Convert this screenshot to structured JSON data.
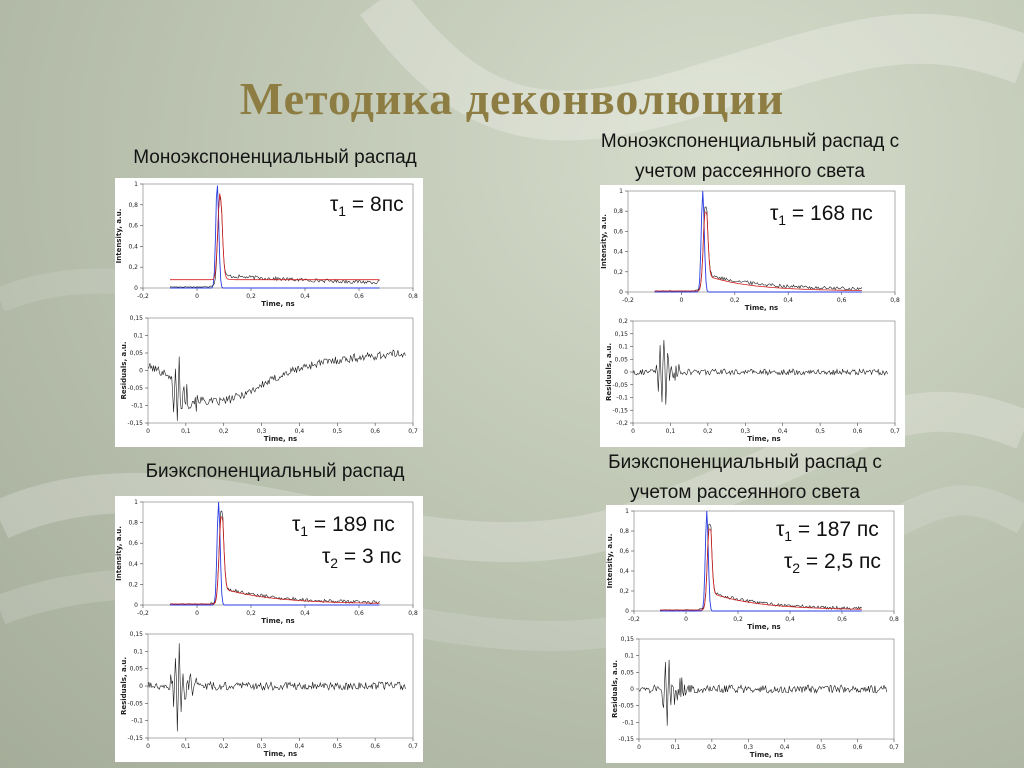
{
  "slide": {
    "title": "Методика деконволюции",
    "accent_color": "#8d7d42"
  },
  "panels": [
    {
      "caption_lines": [
        "Моноэкспоненциальный распад"
      ],
      "tau_lines": [
        {
          "sym": "τ",
          "sub": "1",
          "val": " = 8пс"
        }
      ]
    },
    {
      "caption_lines": [
        "Моноэкспоненциальный распад с",
        "учетом рассеянного света"
      ],
      "tau_lines": [
        {
          "sym": "τ",
          "sub": "1",
          "val": " = 168 пс"
        }
      ]
    },
    {
      "caption_lines": [
        "Биэкспоненциальный распад"
      ],
      "tau_lines": [
        {
          "sym": "τ",
          "sub": "1",
          "val": " = 189 пс"
        },
        {
          "sym": "τ",
          "sub": "2",
          "val": " = 3 пс"
        }
      ]
    },
    {
      "caption_lines": [
        "Биэкспоненциальный распад с",
        "учетом рассеянного света"
      ],
      "tau_lines": [
        {
          "sym": "τ",
          "sub": "1",
          "val": " = 187 пс"
        },
        {
          "sym": "τ",
          "sub": "2",
          "val": " = 2,5 пс"
        }
      ]
    }
  ],
  "chart_data": [
    {
      "type": "line",
      "panel": 0,
      "plot": "decay",
      "xlabel": "Time, ns",
      "ylabel": "Intensity, a.u.",
      "xlim": [
        -0.2,
        0.8
      ],
      "ylim": [
        0,
        1
      ],
      "xticks": [
        "-0,2",
        "0",
        "0,2",
        "0,4",
        "0,6",
        "0,8"
      ],
      "yticks": [
        "0",
        "0,2",
        "0,4",
        "0,6",
        "0,8",
        "1"
      ],
      "series_colors": {
        "irf": "#2a3ee0",
        "data": "#1a1a1a",
        "fit": "#d42020"
      },
      "model": {
        "irf_peak_x": 0.075,
        "irf_width": 0.008,
        "data_peak": 0.88,
        "tail_level": 0.1,
        "tail_decay": 0.55,
        "fit_baseline": 0.07,
        "fit_tail_level": 0.12,
        "fit_tau": 0.008,
        "x_start": -0.1,
        "x_end": 0.68
      },
      "grid": false
    },
    {
      "type": "line",
      "panel": 0,
      "plot": "residuals",
      "xlabel": "Time, ns",
      "ylabel": "Residuals, a.u.",
      "xlim": [
        0,
        0.7
      ],
      "ylim": [
        -0.15,
        0.15
      ],
      "xticks": [
        "0",
        "0,1",
        "0,2",
        "0,3",
        "0,4",
        "0,5",
        "0,6",
        "0,7"
      ],
      "yticks": [
        "-0,15",
        "-0,1",
        "-0,05",
        "0",
        "0,05",
        "0,1",
        "0,15"
      ],
      "model": {
        "spike_x": 0.08,
        "spike_amp": 0.1,
        "dip_center": 0.18,
        "dip_depth": -0.09,
        "dip_width": 0.25,
        "end_level": 0.05,
        "noise": 0.012,
        "x_end": 0.68
      },
      "grid": false
    },
    {
      "type": "line",
      "panel": 1,
      "plot": "decay",
      "xlabel": "Time, ns",
      "ylabel": "Intensity, a.u.",
      "xlim": [
        -0.2,
        0.8
      ],
      "ylim": [
        0,
        1
      ],
      "xticks": [
        "-0,2",
        "0",
        "0,2",
        "0,4",
        "0,6",
        "0,8"
      ],
      "yticks": [
        "0",
        "0,2",
        "0,4",
        "0,6",
        "0,8",
        "1"
      ],
      "series_colors": {
        "irf": "#2a3ee0",
        "data": "#1a1a1a",
        "fit": "#d42020"
      },
      "model": {
        "irf_peak_x": 0.08,
        "irf_width": 0.008,
        "data_peak": 0.85,
        "tail_level": 0.15,
        "tail_decay": 0.22,
        "fit_baseline": 0.0,
        "fit_tail_level": 0.15,
        "fit_tau": 0.168,
        "x_start": -0.1,
        "x_end": 0.68
      },
      "grid": false
    },
    {
      "type": "line",
      "panel": 1,
      "plot": "residuals",
      "xlabel": "Time, ns",
      "ylabel": "Residuals, a.u.",
      "xlim": [
        0,
        0.7
      ],
      "ylim": [
        -0.2,
        0.2
      ],
      "xticks": [
        "0",
        "0,1",
        "0,2",
        "0,3",
        "0,4",
        "0,5",
        "0,6",
        "0,7"
      ],
      "yticks": [
        "-0,2",
        "-0,15",
        "-0,1",
        "-0,05",
        "0",
        "0,05",
        "0,1",
        "0,15",
        "0,2"
      ],
      "model": {
        "spike_x": 0.08,
        "spike_amp": 0.16,
        "dip_center": 0.2,
        "dip_depth": 0.0,
        "dip_width": 0.2,
        "end_level": 0.0,
        "noise": 0.012,
        "x_end": 0.68
      },
      "grid": false
    },
    {
      "type": "line",
      "panel": 2,
      "plot": "decay",
      "xlabel": "Time, ns",
      "ylabel": "Intensity, a.u.",
      "xlim": [
        -0.2,
        0.8
      ],
      "ylim": [
        0,
        1
      ],
      "xticks": [
        "-0,2",
        "0",
        "0,2",
        "0,4",
        "0,6",
        "0,8"
      ],
      "yticks": [
        "0",
        "0,2",
        "0,4",
        "0,6",
        "0,8",
        "1"
      ],
      "series_colors": {
        "irf": "#2a3ee0",
        "data": "#1a1a1a",
        "fit": "#d42020"
      },
      "model": {
        "irf_peak_x": 0.08,
        "irf_width": 0.008,
        "data_peak": 0.92,
        "tail_level": 0.15,
        "tail_decay": 0.189,
        "fit_baseline": 0.0,
        "fit_tail_level": 0.15,
        "fit_tau": 0.189,
        "x_start": -0.1,
        "x_end": 0.68
      },
      "grid": false
    },
    {
      "type": "line",
      "panel": 2,
      "plot": "residuals",
      "xlabel": "Time, ns",
      "ylabel": "Residuals, a.u.",
      "xlim": [
        0,
        0.7
      ],
      "ylim": [
        -0.15,
        0.15
      ],
      "xticks": [
        "0",
        "0,1",
        "0,2",
        "0,3",
        "0,4",
        "0,5",
        "0,6",
        "0,7"
      ],
      "yticks": [
        "-0,15",
        "-0,1",
        "-0,05",
        "0",
        "0,05",
        "0,1",
        "0,15"
      ],
      "model": {
        "spike_x": 0.08,
        "spike_amp": 0.12,
        "dip_center": 0.2,
        "dip_depth": 0.0,
        "dip_width": 0.2,
        "end_level": 0.0,
        "noise": 0.012,
        "x_end": 0.68
      },
      "grid": false
    },
    {
      "type": "line",
      "panel": 3,
      "plot": "decay",
      "xlabel": "Time, ns",
      "ylabel": "Intensity, a.u.",
      "xlim": [
        -0.2,
        0.8
      ],
      "ylim": [
        0,
        1
      ],
      "xticks": [
        "-0,2",
        "0",
        "0,2",
        "0,4",
        "0,6",
        "0,8"
      ],
      "yticks": [
        "0",
        "0,2",
        "0,4",
        "0,6",
        "0,8",
        "1"
      ],
      "series_colors": {
        "irf": "#2a3ee0",
        "data": "#1a1a1a",
        "fit": "#d42020"
      },
      "model": {
        "irf_peak_x": 0.08,
        "irf_width": 0.008,
        "data_peak": 0.88,
        "tail_level": 0.17,
        "tail_decay": 0.187,
        "fit_baseline": 0.0,
        "fit_tail_level": 0.17,
        "fit_tau": 0.187,
        "x_start": -0.1,
        "x_end": 0.68
      },
      "grid": false
    },
    {
      "type": "line",
      "panel": 3,
      "plot": "residuals",
      "xlabel": "Time, ns",
      "ylabel": "Residuals, a.u.",
      "xlim": [
        0,
        0.7
      ],
      "ylim": [
        -0.15,
        0.15
      ],
      "xticks": [
        "0",
        "0,1",
        "0,2",
        "0,3",
        "0,4",
        "0,5",
        "0,6",
        "0,7"
      ],
      "yticks": [
        "-0,15",
        "-0,1",
        "-0,05",
        "0",
        "0,05",
        "0,1",
        "0,15"
      ],
      "model": {
        "spike_x": 0.08,
        "spike_amp": 0.12,
        "dip_center": 0.2,
        "dip_depth": 0.0,
        "dip_width": 0.2,
        "end_level": 0.0,
        "noise": 0.012,
        "x_end": 0.68
      },
      "grid": false
    }
  ]
}
